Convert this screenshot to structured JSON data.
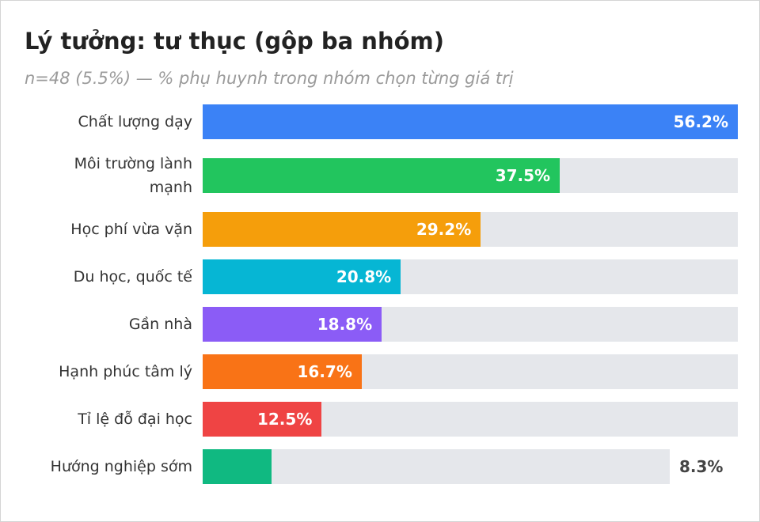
{
  "chart_data": {
    "type": "bar",
    "orientation": "horizontal",
    "title": "Lý tưởng: tư thục (gộp ba nhóm)",
    "subtitle": "n=48 (5.5%) — % phụ huynh trong nhóm chọn từng giá trị",
    "categories": [
      "Chất lượng dạy",
      "Môi trường lành mạnh",
      "Học phí vừa vặn",
      "Du học, quốc tế",
      "Gần nhà",
      "Hạnh phúc tâm lý",
      "Tỉ lệ đỗ đại học",
      "Hướng nghiệp sớm"
    ],
    "values": [
      56.2,
      37.5,
      29.2,
      20.8,
      18.8,
      16.7,
      12.5,
      8.3
    ],
    "value_labels": [
      "56.2%",
      "37.5%",
      "29.2%",
      "20.8%",
      "18.8%",
      "16.7%",
      "12.5%",
      "8.3%"
    ],
    "colors": [
      "#3b82f6",
      "#22c55e",
      "#f59e0b",
      "#06b6d4",
      "#8b5cf6",
      "#f97316",
      "#ef4444",
      "#10b981"
    ],
    "xlim": [
      0,
      56.2
    ]
  }
}
